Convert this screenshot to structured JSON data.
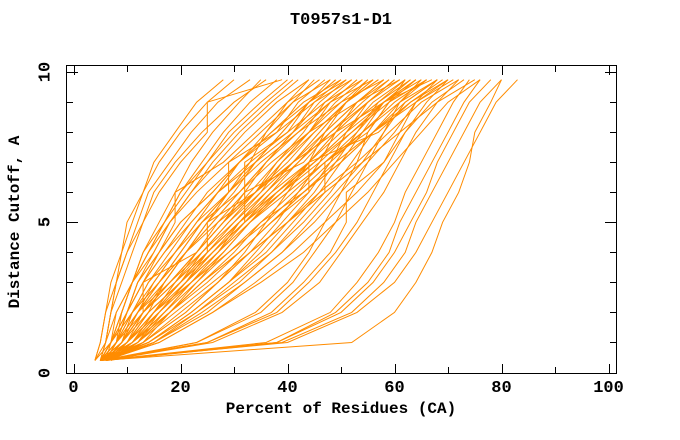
{
  "chart_data": {
    "type": "line",
    "title": "T0957s1-D1",
    "xlabel": "Percent of Residues (CA)",
    "ylabel": "Distance Cutoff, A",
    "xlim": [
      -1.4,
      101.5
    ],
    "ylim": [
      0,
      10.2
    ],
    "grid": false,
    "legend": "none",
    "line_color": "#ff8c00",
    "axis_color": "#000000",
    "x_ticks": {
      "major": [
        0,
        20,
        40,
        60,
        80,
        100
      ],
      "minor": [
        10,
        30,
        50,
        70,
        90
      ],
      "labels": [
        "0",
        "20",
        "40",
        "60",
        "80",
        "100"
      ]
    },
    "y_ticks": {
      "major": [
        0,
        5,
        10
      ],
      "minor": [
        1,
        2,
        3,
        4,
        6,
        7,
        8,
        9
      ],
      "labels": [
        "0",
        "5",
        "10"
      ]
    },
    "series_count": 80,
    "cutoffs": [
      0.4,
      1,
      2,
      3,
      4,
      5,
      6,
      7,
      8,
      9,
      9.75
    ],
    "series": [
      [
        5,
        6,
        7,
        8,
        9,
        11,
        13,
        15,
        19,
        23,
        28
      ],
      [
        4,
        5,
        6,
        7,
        9,
        10,
        13,
        16,
        20,
        25,
        30
      ],
      [
        5,
        6,
        7,
        8,
        10,
        12,
        14,
        18,
        22,
        27,
        33
      ],
      [
        6,
        7,
        9,
        11,
        13,
        16,
        19,
        22,
        26,
        31,
        35
      ],
      [
        5,
        6,
        7,
        9,
        11,
        13,
        15,
        19,
        24,
        30,
        36
      ],
      [
        6,
        8,
        9,
        11,
        14,
        17,
        20,
        24,
        28,
        33,
        38
      ],
      [
        4,
        5,
        6,
        8,
        10,
        13,
        16,
        20,
        25,
        25,
        39
      ],
      [
        5,
        7,
        9,
        11,
        14,
        17,
        21,
        25,
        30,
        36,
        41
      ],
      [
        5,
        7,
        8,
        11,
        13,
        17,
        20,
        25,
        29,
        35,
        40
      ],
      [
        6,
        8,
        10,
        12,
        15,
        18,
        22,
        26,
        31,
        37,
        42
      ],
      [
        5,
        7,
        9,
        11,
        14,
        18,
        22,
        27,
        32,
        38,
        44
      ],
      [
        6,
        8,
        10,
        12,
        16,
        19,
        19,
        28,
        34,
        40,
        46
      ],
      [
        4,
        6,
        8,
        11,
        15,
        18,
        23,
        29,
        35,
        41,
        48
      ],
      [
        6,
        8,
        10,
        13,
        17,
        21,
        25,
        31,
        37,
        43,
        50
      ],
      [
        5,
        7,
        10,
        13,
        16,
        20,
        26,
        31,
        38,
        45,
        52
      ],
      [
        6,
        8,
        11,
        14,
        18,
        22,
        27,
        33,
        40,
        47,
        54
      ],
      [
        5,
        8,
        10,
        13,
        17,
        22,
        27,
        34,
        41,
        48,
        56
      ],
      [
        6,
        9,
        11,
        14,
        19,
        23,
        29,
        35,
        42,
        50,
        58
      ],
      [
        5,
        7,
        11,
        15,
        19,
        23,
        27,
        31,
        36,
        41,
        45
      ],
      [
        6,
        8,
        12,
        16,
        20,
        24,
        29,
        29,
        38,
        42,
        47
      ],
      [
        5,
        8,
        11,
        16,
        20,
        24,
        29,
        34,
        39,
        44,
        49
      ],
      [
        6,
        9,
        12,
        17,
        21,
        26,
        31,
        36,
        41,
        46,
        51
      ],
      [
        4,
        7,
        11,
        16,
        21,
        26,
        31,
        36,
        42,
        48,
        53
      ],
      [
        6,
        9,
        13,
        18,
        23,
        28,
        33,
        38,
        44,
        50,
        55
      ],
      [
        5,
        8,
        12,
        18,
        23,
        28,
        34,
        39,
        45,
        51,
        57
      ],
      [
        6,
        9,
        13,
        19,
        24,
        29,
        35,
        41,
        47,
        53,
        59
      ],
      [
        5,
        8,
        13,
        18,
        24,
        30,
        36,
        42,
        48,
        55,
        61
      ],
      [
        6,
        9,
        14,
        20,
        25,
        31,
        37,
        44,
        50,
        57,
        63
      ],
      [
        5,
        9,
        13,
        19,
        25,
        31,
        38,
        45,
        51,
        58,
        65
      ],
      [
        6,
        10,
        15,
        21,
        27,
        33,
        40,
        47,
        54,
        61,
        68
      ],
      [
        5,
        9,
        13,
        13,
        23,
        27,
        32,
        36,
        41,
        45,
        50
      ],
      [
        6,
        11,
        15,
        20,
        24,
        29,
        34,
        38,
        43,
        47,
        52
      ],
      [
        5,
        10,
        15,
        20,
        25,
        25,
        34,
        39,
        44,
        49,
        54
      ],
      [
        7,
        12,
        17,
        22,
        27,
        31,
        36,
        41,
        46,
        51,
        56
      ],
      [
        5,
        10,
        16,
        21,
        26,
        32,
        37,
        42,
        47,
        53,
        58
      ],
      [
        6,
        11,
        17,
        22,
        28,
        33,
        38,
        44,
        49,
        55,
        60
      ],
      [
        5,
        11,
        16,
        22,
        28,
        33,
        39,
        45,
        51,
        56,
        62
      ],
      [
        7,
        13,
        18,
        24,
        30,
        35,
        41,
        47,
        53,
        58,
        64
      ],
      [
        5,
        11,
        17,
        23,
        29,
        36,
        42,
        48,
        54,
        60,
        66
      ],
      [
        6,
        12,
        18,
        25,
        31,
        37,
        43,
        49,
        56,
        62,
        68
      ],
      [
        5,
        11,
        18,
        24,
        31,
        37,
        44,
        44,
        57,
        63,
        70
      ],
      [
        7,
        13,
        20,
        27,
        33,
        40,
        46,
        53,
        59,
        65,
        72
      ],
      [
        6,
        13,
        21,
        27,
        32,
        36,
        40,
        44,
        47,
        51,
        55
      ],
      [
        5,
        13,
        21,
        27,
        33,
        38,
        42,
        46,
        49,
        53,
        58
      ],
      [
        6,
        14,
        22,
        29,
        34,
        39,
        44,
        48,
        51,
        55,
        60
      ],
      [
        5,
        14,
        22,
        29,
        35,
        40,
        45,
        49,
        53,
        57,
        62
      ],
      [
        6,
        15,
        23,
        30,
        37,
        42,
        47,
        47,
        55,
        59,
        64
      ],
      [
        5,
        14,
        23,
        31,
        37,
        43,
        48,
        52,
        56,
        61,
        66
      ],
      [
        6,
        15,
        25,
        32,
        39,
        44,
        49,
        54,
        58,
        62,
        68
      ],
      [
        5,
        15,
        24,
        32,
        39,
        45,
        50,
        55,
        60,
        64,
        70
      ],
      [
        6,
        16,
        26,
        34,
        41,
        47,
        53,
        58,
        62,
        67,
        73
      ],
      [
        5,
        16,
        26,
        35,
        43,
        49,
        55,
        60,
        65,
        70,
        76
      ],
      [
        6,
        23,
        34,
        40,
        44,
        47,
        50,
        53,
        55,
        59,
        62
      ],
      [
        5,
        23,
        35,
        41,
        45,
        49,
        52,
        55,
        58,
        61,
        65
      ],
      [
        6,
        25,
        37,
        43,
        48,
        51,
        51,
        58,
        61,
        64,
        68
      ],
      [
        5,
        25,
        38,
        44,
        49,
        53,
        56,
        59,
        62,
        66,
        70
      ],
      [
        6,
        26,
        39,
        46,
        50,
        54,
        58,
        61,
        64,
        68,
        72
      ],
      [
        5,
        36,
        48,
        53,
        57,
        60,
        62,
        65,
        68,
        71,
        74
      ],
      [
        6,
        38,
        49,
        55,
        59,
        61,
        64,
        67,
        70,
        73,
        76
      ],
      [
        5,
        38,
        50,
        56,
        60,
        63,
        66,
        68,
        71,
        74,
        78
      ],
      [
        6,
        39,
        52,
        58,
        62,
        64,
        67,
        70,
        73,
        76,
        80
      ],
      [
        5,
        40,
        53,
        60,
        64,
        67,
        70,
        73,
        76,
        79,
        83
      ],
      [
        5,
        52,
        60,
        64,
        67,
        69,
        72,
        74,
        75,
        78,
        80
      ],
      [
        6,
        9,
        12,
        16,
        21,
        25,
        30,
        34,
        39,
        44,
        49
      ],
      [
        5,
        7,
        10,
        12,
        16,
        20,
        26,
        31,
        37,
        44,
        51
      ],
      [
        7,
        12,
        16,
        21,
        25,
        30,
        35,
        39,
        44,
        48,
        53
      ],
      [
        6,
        9,
        13,
        18,
        23,
        28,
        34,
        40,
        45,
        51,
        57
      ],
      [
        5,
        10,
        16,
        21,
        27,
        32,
        32,
        43,
        48,
        54,
        59
      ],
      [
        6,
        9,
        12,
        15,
        19,
        24,
        31,
        37,
        44,
        53,
        61
      ],
      [
        5,
        14,
        22,
        29,
        36,
        41,
        46,
        50,
        54,
        58,
        63
      ],
      [
        6,
        10,
        14,
        20,
        26,
        32,
        39,
        46,
        52,
        59,
        66
      ],
      [
        5,
        11,
        18,
        24,
        31,
        37,
        43,
        50,
        56,
        63,
        69
      ],
      [
        6,
        10,
        14,
        17,
        21,
        25,
        29,
        33,
        36,
        40,
        44
      ],
      [
        7,
        11,
        15,
        19,
        23,
        28,
        32,
        32,
        40,
        44,
        48
      ],
      [
        6,
        11,
        16,
        21,
        26,
        31,
        36,
        41,
        46,
        51,
        56
      ],
      [
        7,
        12,
        18,
        23,
        28,
        33,
        39,
        44,
        49,
        55,
        60
      ],
      [
        6,
        10,
        14,
        20,
        26,
        32,
        38,
        45,
        52,
        58,
        64
      ],
      [
        7,
        10,
        13,
        17,
        21,
        27,
        34,
        41,
        49,
        58,
        67
      ],
      [
        6,
        10,
        15,
        22,
        29,
        35,
        43,
        50,
        56,
        64,
        71
      ],
      [
        5,
        12,
        19,
        26,
        33,
        40,
        47,
        54,
        61,
        68,
        75
      ]
    ]
  }
}
